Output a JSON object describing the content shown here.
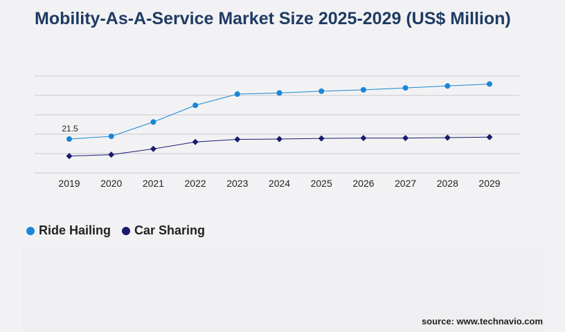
{
  "title": "Mobility-As-A-Service Market Size 2025-2029 (US$ Million)",
  "source": "source: www.technavio.com",
  "chart_data": {
    "type": "line",
    "x": [
      "2019",
      "2020",
      "2021",
      "2022",
      "2023",
      "2024",
      "2025",
      "2026",
      "2027",
      "2028",
      "2029"
    ],
    "series": [
      {
        "name": "Ride Hailing",
        "color": "#1a87d6",
        "values": [
          21.5,
          22.9,
          30.3,
          38.9,
          44.7,
          45.3,
          46.2,
          46.9,
          47.9,
          48.9,
          49.9
        ],
        "data_labels": [
          "21.5",
          null,
          null,
          null,
          null,
          null,
          null,
          null,
          null,
          null,
          null
        ]
      },
      {
        "name": "Car Sharing",
        "color": "#1a1a6e",
        "values": [
          12.7,
          13.4,
          16.4,
          20.0,
          21.3,
          21.5,
          21.8,
          22.0,
          22.0,
          22.2,
          22.5
        ]
      }
    ],
    "ylim": [
      4,
      54
    ],
    "gridlines": [
      4,
      14,
      24,
      34,
      44,
      54
    ],
    "y_tick_labels_shown": false,
    "grid": true,
    "legend_position": "bottom-left"
  }
}
